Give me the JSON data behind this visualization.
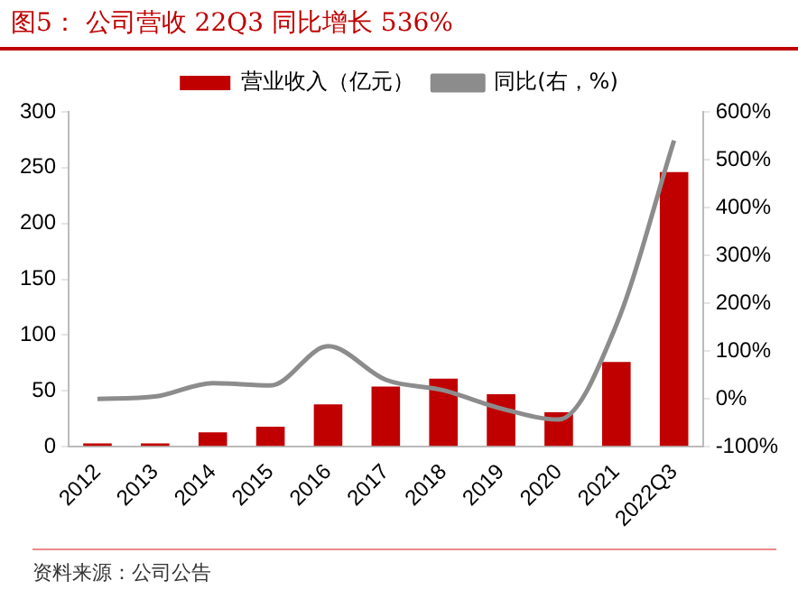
{
  "chart_data": {
    "type": "bar",
    "title": "图5：  公司营收 22Q3 同比增长 536%",
    "categories": [
      "2012",
      "2013",
      "2014",
      "2015",
      "2016",
      "2017",
      "2018",
      "2019",
      "2020",
      "2021",
      "2022Q3"
    ],
    "series": [
      {
        "name": "营业收入（亿元）",
        "color": "#c00000",
        "values": [
          3,
          3,
          13,
          18,
          38,
          54,
          61,
          47,
          31,
          76,
          246
        ]
      },
      {
        "name": "同比(右，%)",
        "type": "line",
        "axis": "y2",
        "color": "#8c8c8c",
        "values": [
          0,
          5,
          33,
          28,
          110,
          40,
          18,
          -20,
          -43,
          155,
          540
        ]
      }
    ],
    "ylim": [
      0,
      300
    ],
    "yticks": [
      0,
      50,
      100,
      150,
      200,
      250,
      300
    ],
    "y2lim": [
      -100,
      600
    ],
    "y2ticks": [
      {
        "value": -100,
        "label": "-100%"
      },
      {
        "value": 0,
        "label": "0%"
      },
      {
        "value": 100,
        "label": "100%"
      },
      {
        "value": 200,
        "label": "200%"
      },
      {
        "value": 300,
        "label": "300%"
      },
      {
        "value": 400,
        "label": "400%"
      },
      {
        "value": 500,
        "label": "500%"
      },
      {
        "value": 600,
        "label": "600%"
      }
    ],
    "grid": false,
    "legend": "top",
    "marker": "none",
    "annotations": [
      "资料来源：公司公告"
    ]
  }
}
